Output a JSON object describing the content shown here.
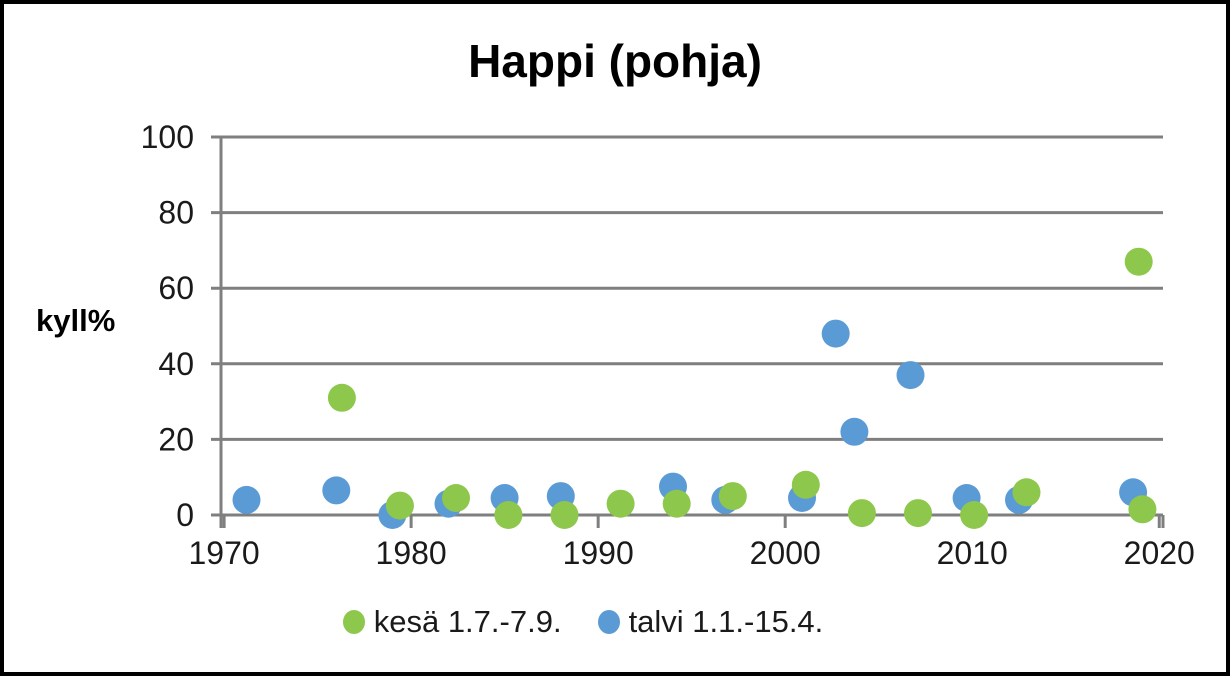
{
  "chart_data": {
    "type": "scatter",
    "title": "Happi (pohja)",
    "ylabel": "kyll%",
    "xlabel": "",
    "xlim": [
      1969.3,
      2020.2
    ],
    "ylim": [
      0,
      100
    ],
    "yticks": [
      0,
      20,
      40,
      60,
      80,
      100
    ],
    "xticks": [
      1970,
      1980,
      1990,
      2000,
      2010,
      2020
    ],
    "grid": "horizontal",
    "legend_position": "bottom",
    "axis_color": "#7F7F7F",
    "text_color": "#1A1A1A",
    "background_color": "#FFFFFF",
    "border_color": "#000000",
    "series": [
      {
        "name": "kesä 1.7.-7.9.",
        "color": "#8DC74B",
        "points": [
          [
            1976.3,
            31
          ],
          [
            1979.4,
            2.5
          ],
          [
            1982.4,
            4.5
          ],
          [
            1985.2,
            0
          ],
          [
            1988.2,
            0
          ],
          [
            1991.2,
            3
          ],
          [
            1994.2,
            3
          ],
          [
            1997.2,
            5
          ],
          [
            2001.1,
            8
          ],
          [
            2004.1,
            0.5
          ],
          [
            2007.1,
            0.5
          ],
          [
            2010.1,
            0
          ],
          [
            2012.9,
            6
          ],
          [
            2018.9,
            67
          ],
          [
            2019.1,
            1.5
          ]
        ]
      },
      {
        "name": "talvi 1.1.-15.4.",
        "color": "#5B9BD5",
        "points": [
          [
            1971.2,
            4
          ],
          [
            1976,
            6.5
          ],
          [
            1979,
            0
          ],
          [
            1982,
            3
          ],
          [
            1985,
            4.5
          ],
          [
            1988,
            5
          ],
          [
            1994,
            7.5
          ],
          [
            1996.8,
            4
          ],
          [
            2000.9,
            4.5
          ],
          [
            2002.7,
            48
          ],
          [
            2003.7,
            22
          ],
          [
            2006.7,
            37
          ],
          [
            2009.7,
            4.5
          ],
          [
            2012.5,
            4
          ],
          [
            2018.6,
            6
          ]
        ]
      }
    ]
  }
}
